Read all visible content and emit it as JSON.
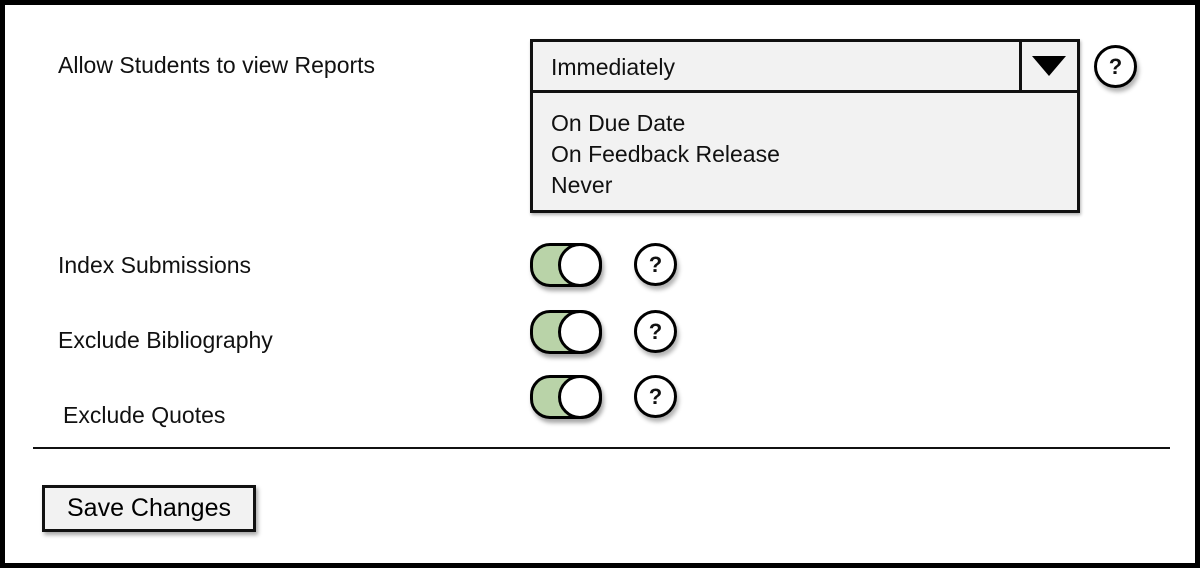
{
  "report_view": {
    "label": "Allow Students to view Reports",
    "selected": "Immediately",
    "options": [
      "On Due Date",
      "On Feedback Release",
      "Never"
    ],
    "help_icon": "?"
  },
  "toggles": [
    {
      "label": "Index Submissions",
      "on": true,
      "help_icon": "?"
    },
    {
      "label": "Exclude Bibliography",
      "on": true,
      "help_icon": "?"
    },
    {
      "label": "Exclude Quotes",
      "on": true,
      "help_icon": "?"
    }
  ],
  "save_label": "Save Changes",
  "colors": {
    "toggle_on": "#b9d3a8",
    "panel": "#f2f2f2"
  }
}
